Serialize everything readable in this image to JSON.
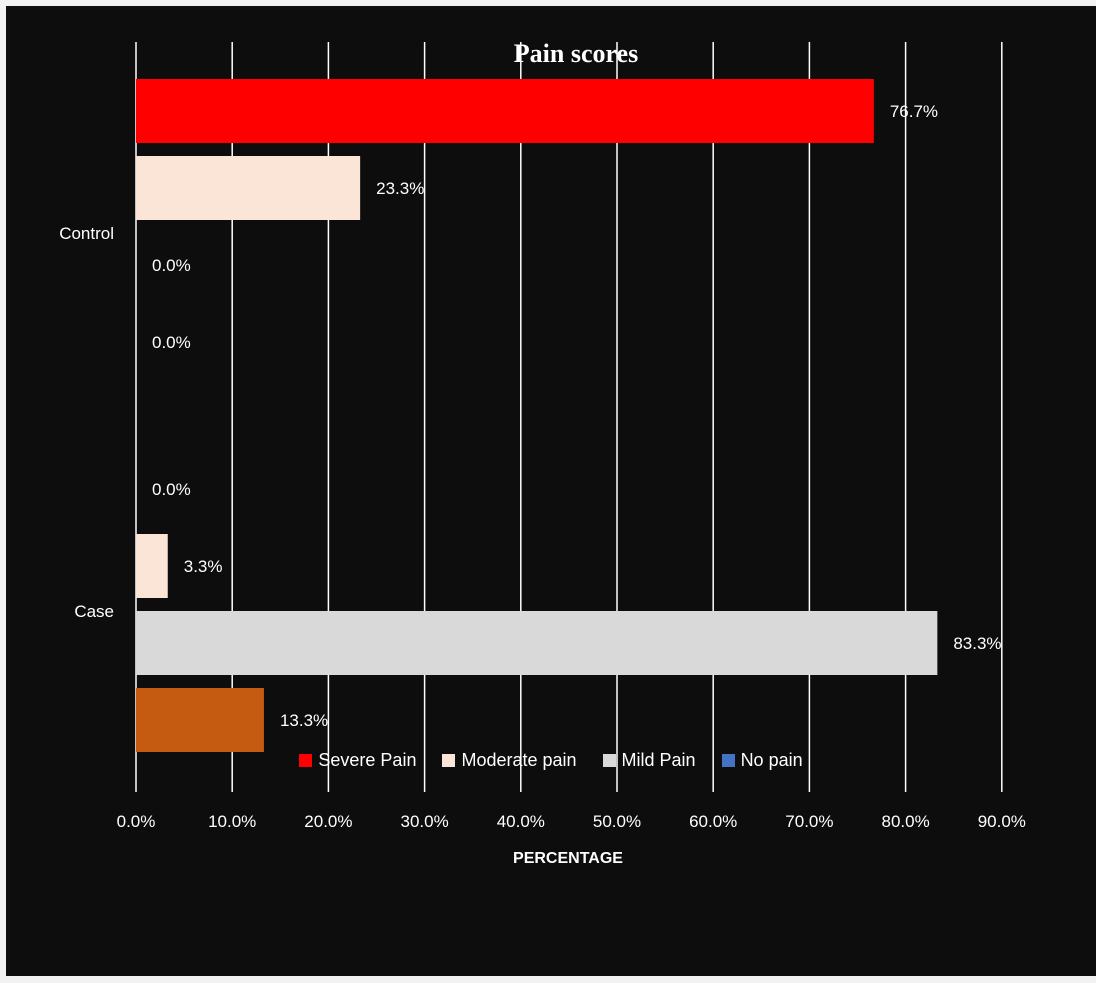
{
  "chart_data": {
    "type": "bar",
    "orientation": "horizontal",
    "title": "Pain scores",
    "xlabel": "PERCENTAGE",
    "ylabel": "",
    "categories": [
      "Control",
      "Case"
    ],
    "series": [
      {
        "name": "Severe Pain",
        "color": "#ff0000",
        "values": [
          76.7,
          0.0
        ],
        "labels": [
          "76.7%",
          "0.0%"
        ]
      },
      {
        "name": "Moderate pain",
        "color": "#fbe5d6",
        "values": [
          23.3,
          3.3
        ],
        "labels": [
          "23.3%",
          "3.3%"
        ]
      },
      {
        "name": "Mild Pain",
        "color": "#d9d9d9",
        "values": [
          0.0,
          83.3
        ],
        "labels": [
          "0.0%",
          "83.3%"
        ]
      },
      {
        "name": "No pain",
        "color": "#4472c4",
        "values": [
          0.0,
          13.3
        ],
        "labels": [
          "0.0%",
          "13.3%"
        ],
        "bar_colors": [
          "#4472c4",
          "#c55a11"
        ]
      }
    ],
    "xlim": [
      0,
      90
    ],
    "x_ticks": [
      "0.0%",
      "10.0%",
      "20.0%",
      "30.0%",
      "40.0%",
      "50.0%",
      "60.0%",
      "70.0%",
      "80.0%",
      "90.0%"
    ],
    "grid": "vertical",
    "legend": "bottom",
    "background": "#0d0d0d"
  }
}
